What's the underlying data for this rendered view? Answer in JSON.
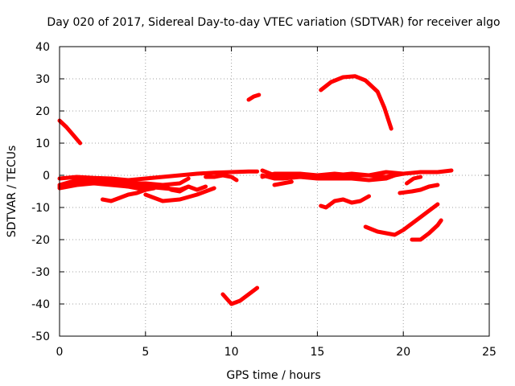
{
  "chart_data": {
    "type": "line",
    "title": "Day 020 of 2017, Sidereal Day-to-day VTEC variation (SDTVAR) for receiver algo",
    "xlabel": "GPS time / hours",
    "ylabel": "SDTVAR / TECUs",
    "xlim": [
      0,
      25
    ],
    "ylim": [
      -50,
      40
    ],
    "xticks": [
      0,
      5,
      10,
      15,
      20,
      25
    ],
    "yticks": [
      -50,
      -40,
      -30,
      -20,
      -10,
      0,
      10,
      20,
      30,
      40
    ],
    "xtick_labels": [
      "0",
      "5",
      "10",
      "15",
      "20",
      "25"
    ],
    "ytick_labels": [
      "-50",
      "-40",
      "-30",
      "-20",
      "-10",
      "0",
      "10",
      "20",
      "30",
      "40"
    ],
    "grid": true,
    "legend": "none",
    "series_color": "#ff0000",
    "series": [
      {
        "points": [
          [
            0,
            17
          ],
          [
            0.4,
            15
          ],
          [
            0.8,
            12.5
          ],
          [
            1.2,
            10
          ]
        ]
      },
      {
        "points": [
          [
            11,
            23.5
          ],
          [
            11.3,
            24.5
          ],
          [
            11.6,
            25
          ]
        ]
      },
      {
        "points": [
          [
            15.2,
            26.5
          ],
          [
            15.8,
            29
          ],
          [
            16.5,
            30.5
          ],
          [
            17.2,
            30.8
          ],
          [
            17.8,
            29.5
          ],
          [
            18.5,
            26
          ],
          [
            18.9,
            21
          ],
          [
            19.3,
            14.5
          ]
        ]
      },
      {
        "points": [
          [
            0,
            -1
          ],
          [
            1,
            -0.5
          ],
          [
            2,
            -0.8
          ],
          [
            3,
            -1
          ],
          [
            4,
            -1.5
          ],
          [
            5,
            -1
          ],
          [
            6,
            -0.5
          ],
          [
            7,
            0
          ],
          [
            8,
            0.5
          ],
          [
            9,
            0.8
          ],
          [
            10,
            1
          ],
          [
            11,
            1.2
          ],
          [
            11.5,
            1.2
          ]
        ]
      },
      {
        "points": [
          [
            0,
            -3
          ],
          [
            1,
            -1.5
          ],
          [
            2,
            -1
          ],
          [
            3,
            -1.5
          ],
          [
            4,
            -2.5
          ],
          [
            5,
            -2.5
          ],
          [
            6,
            -3
          ],
          [
            7,
            -2.5
          ],
          [
            7.5,
            -1
          ]
        ]
      },
      {
        "points": [
          [
            0,
            -3.5
          ],
          [
            1,
            -2.5
          ],
          [
            2,
            -2
          ],
          [
            3,
            -2.5
          ],
          [
            4,
            -3.5
          ],
          [
            5,
            -4.5
          ],
          [
            5.5,
            -4
          ]
        ]
      },
      {
        "points": [
          [
            0,
            -4
          ],
          [
            1,
            -3
          ],
          [
            2,
            -2.5
          ],
          [
            3,
            -3
          ],
          [
            4,
            -3.5
          ],
          [
            5,
            -3.5
          ],
          [
            6,
            -4
          ],
          [
            7,
            -4.5
          ],
          [
            7.5,
            -3.5
          ]
        ]
      },
      {
        "points": [
          [
            2.5,
            -7.5
          ],
          [
            3,
            -8
          ],
          [
            3.5,
            -7
          ],
          [
            4,
            -6
          ],
          [
            4.5,
            -5.5
          ],
          [
            5,
            -4.5
          ]
        ]
      },
      {
        "points": [
          [
            5,
            -6
          ],
          [
            6,
            -8
          ],
          [
            7,
            -7.5
          ],
          [
            8,
            -6
          ],
          [
            9,
            -4
          ]
        ]
      },
      {
        "points": [
          [
            6,
            -3
          ],
          [
            6.5,
            -4.5
          ],
          [
            7,
            -5
          ],
          [
            7.5,
            -3.5
          ],
          [
            8,
            -4.5
          ],
          [
            8.5,
            -3.5
          ]
        ]
      },
      {
        "points": [
          [
            8.5,
            -0.5
          ],
          [
            9,
            -0.5
          ],
          [
            9.5,
            0
          ]
        ]
      },
      {
        "points": [
          [
            9.5,
            0
          ],
          [
            10,
            -0.5
          ],
          [
            10.3,
            -1.5
          ]
        ]
      },
      {
        "points": [
          [
            11.8,
            1.5
          ],
          [
            12.5,
            0
          ],
          [
            13,
            -0.5
          ],
          [
            14,
            0
          ],
          [
            15,
            -0.5
          ],
          [
            16,
            0
          ],
          [
            17,
            0.5
          ],
          [
            18,
            0
          ],
          [
            19,
            1
          ],
          [
            20,
            0.5
          ],
          [
            21,
            1
          ],
          [
            22,
            1
          ],
          [
            22.8,
            1.5
          ]
        ]
      },
      {
        "points": [
          [
            11.8,
            -0.5
          ],
          [
            12.5,
            0.5
          ],
          [
            13,
            0.5
          ],
          [
            14,
            0.5
          ],
          [
            15,
            0
          ],
          [
            16,
            0.5
          ],
          [
            17,
            0
          ],
          [
            18,
            0
          ],
          [
            19,
            -0.5
          ],
          [
            20,
            0.5
          ]
        ]
      },
      {
        "points": [
          [
            11.8,
            0
          ],
          [
            12.5,
            -1
          ],
          [
            13,
            -1
          ],
          [
            14,
            -0.5
          ],
          [
            15,
            -1
          ],
          [
            16,
            -1
          ],
          [
            17,
            -1
          ],
          [
            18,
            -1.5
          ],
          [
            19,
            -1
          ],
          [
            19.5,
            0
          ]
        ]
      },
      {
        "points": [
          [
            12.5,
            -3
          ],
          [
            13,
            -2.5
          ],
          [
            13.5,
            -2
          ]
        ]
      },
      {
        "points": [
          [
            9.5,
            -37
          ],
          [
            10,
            -40
          ],
          [
            10.5,
            -39
          ],
          [
            11,
            -37
          ],
          [
            11.5,
            -35
          ]
        ]
      },
      {
        "points": [
          [
            15.2,
            -9.5
          ],
          [
            15.5,
            -10
          ],
          [
            16,
            -8
          ],
          [
            16.5,
            -7.5
          ],
          [
            17,
            -8.5
          ],
          [
            17.5,
            -8
          ],
          [
            18,
            -6.5
          ]
        ]
      },
      {
        "points": [
          [
            17.8,
            -16
          ],
          [
            18.5,
            -17.5
          ],
          [
            19.5,
            -18.5
          ],
          [
            20,
            -17
          ],
          [
            20.5,
            -15
          ],
          [
            21,
            -13
          ],
          [
            21.5,
            -11
          ],
          [
            22,
            -9
          ]
        ]
      },
      {
        "points": [
          [
            20.5,
            -20
          ],
          [
            21,
            -20
          ],
          [
            21.5,
            -18
          ],
          [
            22,
            -15.5
          ],
          [
            22.2,
            -14
          ]
        ]
      },
      {
        "points": [
          [
            19.8,
            -5.5
          ],
          [
            20.5,
            -5
          ],
          [
            21,
            -4.5
          ],
          [
            21.5,
            -3.5
          ],
          [
            22,
            -3
          ]
        ]
      },
      {
        "points": [
          [
            20.2,
            -2.5
          ],
          [
            20.6,
            -1
          ],
          [
            21,
            -0.5
          ]
        ]
      }
    ]
  }
}
